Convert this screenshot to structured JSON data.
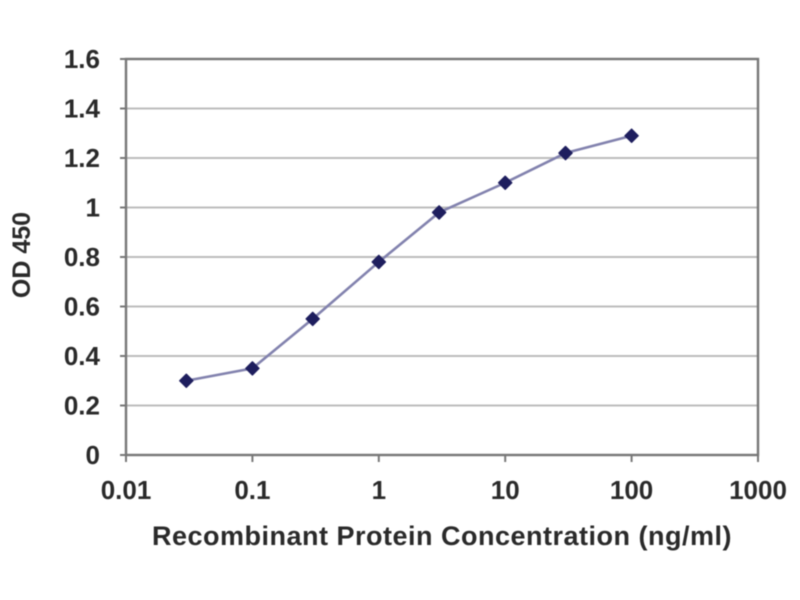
{
  "chart_data": {
    "type": "line",
    "title": "",
    "xlabel": "Recombinant Protein Concentration (ng/ml)",
    "ylabel": "OD 450",
    "x_scale": "log",
    "xlim": [
      0.01,
      1000
    ],
    "ylim": [
      0,
      1.6
    ],
    "grid": "horizontal",
    "legend": "none",
    "marker_style": "diamond",
    "x": [
      0.03,
      0.1,
      0.3,
      1,
      3,
      10,
      30,
      100
    ],
    "series": [
      {
        "name": "OD 450",
        "values": [
          0.3,
          0.35,
          0.55,
          0.78,
          0.98,
          1.1,
          1.22,
          1.29
        ]
      }
    ],
    "xticks": {
      "values": [
        0.01,
        0.1,
        1,
        10,
        100,
        1000
      ],
      "labels": [
        "0.01",
        "0.1",
        "1",
        "10",
        "100",
        "1000"
      ]
    },
    "yticks": {
      "values": [
        0,
        0.2,
        0.4,
        0.6,
        0.8,
        1,
        1.2,
        1.4,
        1.6
      ],
      "labels": [
        "0",
        "0.2",
        "0.4",
        "0.6",
        "0.8",
        "1",
        "1.2",
        "1.4",
        "1.6"
      ]
    },
    "colors": {
      "line": "#8282ae",
      "marker": "#1e1e5e",
      "grid": "#bcbcbc",
      "frame": "#777777",
      "text": "#2a2a2a",
      "background": "#ffffff"
    }
  }
}
